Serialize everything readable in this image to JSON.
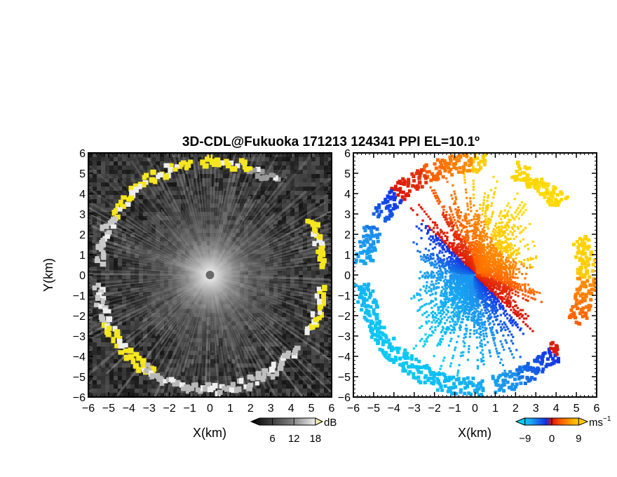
{
  "title": "3D-CDL@Fukuoka 171213 124341 PPI EL=10.1º",
  "chart_data": [
    {
      "type": "heatmap",
      "name": "signal-panel",
      "xlabel": "X(km)",
      "ylabel": "Y(km)",
      "xlim": [
        -6,
        6
      ],
      "ylim": [
        -6,
        6
      ],
      "x_ticks": [
        -6,
        -5,
        -4,
        -3,
        -2,
        -1,
        0,
        1,
        2,
        3,
        4,
        5,
        6
      ],
      "y_ticks": [
        -6,
        -5,
        -4,
        -3,
        -2,
        -1,
        0,
        1,
        2,
        3,
        4,
        5,
        6
      ],
      "x_tick_labels": [
        "−6",
        "−5",
        "−4",
        "−3",
        "−2",
        "−1",
        "0",
        "1",
        "2",
        "3",
        "4",
        "5",
        "6"
      ],
      "y_tick_labels": [
        "−6",
        "−5",
        "−4",
        "−3",
        "−2",
        "−1",
        "0",
        "1",
        "2",
        "3",
        "4",
        "5",
        "6"
      ],
      "colorscale": "grayscale-to-yellow",
      "colorbar": {
        "unit": "dB",
        "ticks": [
          6,
          12,
          18
        ],
        "tick_labels": [
          "6",
          "12",
          "18"
        ],
        "range": [
          0,
          20
        ]
      },
      "max_range_km": 6,
      "radar_origin": [
        0,
        0
      ]
    },
    {
      "type": "heatmap",
      "name": "velocity-panel",
      "xlabel": "X(km)",
      "xlim": [
        -6,
        6
      ],
      "ylim": [
        -6,
        6
      ],
      "x_ticks": [
        -6,
        -5,
        -4,
        -3,
        -2,
        -1,
        0,
        1,
        2,
        3,
        4,
        5,
        6
      ],
      "y_ticks": [
        -6,
        -5,
        -4,
        -3,
        -2,
        -1,
        0,
        1,
        2,
        3,
        4,
        5,
        6
      ],
      "x_tick_labels": [
        "−6",
        "−5",
        "−4",
        "−3",
        "−2",
        "−1",
        "0",
        "1",
        "2",
        "3",
        "4",
        "5",
        "6"
      ],
      "y_tick_labels": [
        "−6",
        "−5",
        "−4",
        "−3",
        "−2",
        "−1",
        "0",
        "1",
        "2",
        "3",
        "4",
        "5",
        "6"
      ],
      "colorscale": "blue-cyan-red-orange-yellow",
      "colorbar": {
        "unit": "ms",
        "unit_sup": "−1",
        "ticks": [
          -9,
          0,
          9
        ],
        "tick_labels": [
          "−9",
          "0",
          "9"
        ],
        "range": [
          -12,
          12
        ]
      },
      "wind_direction_deg": 225,
      "max_range_km": 6
    }
  ],
  "colors": {
    "yellow": "#f5e61e",
    "frame": "#000000"
  }
}
